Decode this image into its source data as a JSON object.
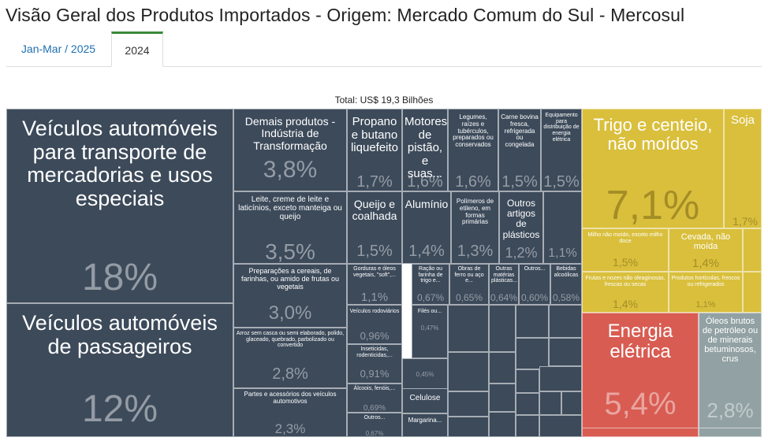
{
  "page": {
    "title": "Visão Geral dos Produtos Importados - Origem: Mercado Comum do Sul - Mercosul",
    "tabs": [
      {
        "label": "Jan-Mar / 2025",
        "active": false
      },
      {
        "label": "2024",
        "active": true
      }
    ],
    "total_label": "Total: US$ 19,3 Bilhões"
  },
  "colors": {
    "navy": "#3c4a5a",
    "yellow": "#d9bf3c",
    "red": "#d85c52",
    "gray": "#92a1a3",
    "tab_accent": "#3a8a3a",
    "link": "#1f6fb2"
  },
  "chart_data": {
    "type": "treemap",
    "total": "US$ 19,3 Bilhões",
    "items": [
      {
        "label": "Veículos automóveis para transporte de mercadorias e usos especiais",
        "value": "18%"
      },
      {
        "label": "Veículos automóveis de passageiros",
        "value": "12%"
      },
      {
        "label": "Demais produtos - Indústria de Transformação",
        "value": "3,8%"
      },
      {
        "label": "Leite, creme de leite e laticínios, exceto manteiga ou queijo",
        "value": "3,5%"
      },
      {
        "label": "Preparações a cereais, de farinhas, ou amido de frutas ou vegetais",
        "value": "3,0%"
      },
      {
        "label": "Arroz sem casca ou semi elaborado, polido, glaceado, quebrado, parbolizado ou convertido",
        "value": "2,8%"
      },
      {
        "label": "Partes e acessórios dos veículos automotivos",
        "value": "2,3%"
      },
      {
        "label": "Propano e butano liquefeito",
        "value": "1,7%"
      },
      {
        "label": "Motores de pistão, e suas...",
        "value": "1,6%"
      },
      {
        "label": "Legumes, raízes e tubérculos, preparados ou conservados",
        "value": "1,6%"
      },
      {
        "label": "Carne bovina fresca, refrigerada ou congelada",
        "value": "1,5%"
      },
      {
        "label": "Equipamento para distribuição de energia elétrica",
        "value": "1,5%"
      },
      {
        "label": "Queijo e coalhada",
        "value": "1,5%"
      },
      {
        "label": "Alumínio",
        "value": "1,4%"
      },
      {
        "label": "Polímeros de etileno, em formas primárias",
        "value": "1,3%"
      },
      {
        "label": "Outros artigos de plásticos",
        "value": "1,2%"
      },
      {
        "label": "",
        "value": "1,1%"
      },
      {
        "label": "Gorduras e óleos vegetais, \"soft\",...",
        "value": "1,1%"
      },
      {
        "label": "Ração ou farinha de trigo e...",
        "value": "0,67%"
      },
      {
        "label": "Obras de ferro ou aço e...",
        "value": "0,65%"
      },
      {
        "label": "Outras matérias plásticas...",
        "value": "0,64%"
      },
      {
        "label": "Outros...",
        "value": "0,60%"
      },
      {
        "label": "Bebidas alcoólicas",
        "value": "0,58%"
      },
      {
        "label": "Veículos rodoviários",
        "value": "0,96%"
      },
      {
        "label": "Inseticidas, rodenticidas,...",
        "value": "0,91%"
      },
      {
        "label": "Álcoois, fenóis,...",
        "value": "0,69%"
      },
      {
        "label": "Outros...",
        "value": "0,67%"
      },
      {
        "label": "Filés ou...",
        "value": "0,47%"
      },
      {
        "label": "",
        "value": "0,45%"
      },
      {
        "label": "Celulose",
        "value": ""
      },
      {
        "label": "Margarina...",
        "value": ""
      },
      {
        "label": "Trigo e centeio, não moídos",
        "value": "7,1%"
      },
      {
        "label": "Soja",
        "value": "1,7%"
      },
      {
        "label": "Milho não moído, exceto milho doce",
        "value": "1,5%"
      },
      {
        "label": "Cevada, não moída",
        "value": "1,4%"
      },
      {
        "label": "Frutas e nozes não oleaginosas, frescas ou secas",
        "value": "1,4%"
      },
      {
        "label": "Produtos hortícolas, frescos ou refrigerados",
        "value": "1,1%"
      },
      {
        "label": "Energia elétrica",
        "value": "5,4%"
      },
      {
        "label": "Óleos brutos de petróleo ou de minerais betuminosos, crus",
        "value": "2,8%"
      }
    ]
  }
}
